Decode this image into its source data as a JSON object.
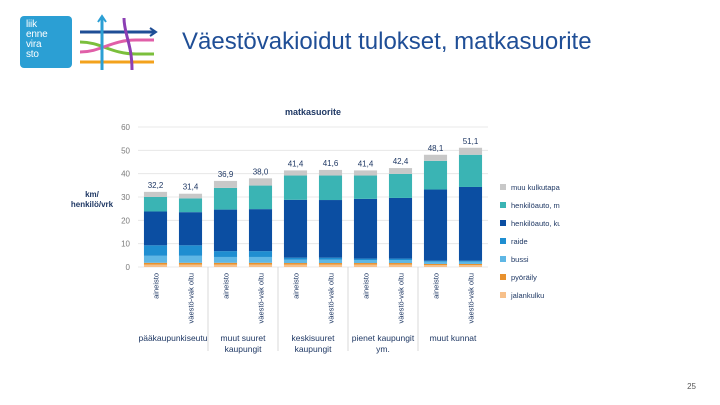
{
  "logo": {
    "lines": [
      "liik",
      "enne",
      "vira",
      "sto"
    ]
  },
  "slide": {
    "title": "Väestövakioidut tulokset, matkasuorite",
    "page_number": "25"
  },
  "chart_data": {
    "type": "bar",
    "stacked": true,
    "title": "matkasuorite",
    "ylabel": "km/ henkilö/vrk",
    "ylabel_lines": [
      "km/",
      "henkilö/vrk"
    ],
    "ylim": [
      0,
      60
    ],
    "yticks": [
      0,
      10,
      20,
      30,
      40,
      50,
      60
    ],
    "grid": true,
    "legend_position": "right",
    "categories": [
      "aineisto",
      "väestö-vak oltu",
      "aineisto",
      "väestö-vak oltu",
      "aineisto",
      "väestö-vak oltu",
      "aineisto",
      "väestö-vak oltu",
      "aineisto",
      "väestö-vak oltu"
    ],
    "groups": [
      {
        "label_lines": [
          "pääkaupunkiseutu"
        ],
        "span": [
          0,
          1
        ]
      },
      {
        "label_lines": [
          "muut suuret",
          "kaupungit"
        ],
        "span": [
          2,
          3
        ]
      },
      {
        "label_lines": [
          "keskisuuret",
          "kaupungit"
        ],
        "span": [
          4,
          5
        ]
      },
      {
        "label_lines": [
          "pienet kaupungit",
          "ym."
        ],
        "span": [
          6,
          7
        ]
      },
      {
        "label_lines": [
          "muut kunnat"
        ],
        "span": [
          8,
          9
        ]
      }
    ],
    "totals": [
      32.2,
      31.4,
      36.9,
      38.0,
      41.4,
      41.6,
      41.4,
      42.4,
      48.1,
      51.1
    ],
    "total_labels": [
      "32,2",
      "31,4",
      "36,9",
      "38,0",
      "41,4",
      "41,6",
      "41,4",
      "42,4",
      "48,1",
      "51,1"
    ],
    "series": [
      {
        "name": "jalankulku",
        "color": "#f7c08a",
        "values": [
          1.0,
          1.0,
          1.0,
          1.0,
          1.0,
          1.0,
          1.0,
          1.0,
          0.8,
          0.8
        ]
      },
      {
        "name": "pyöräily",
        "color": "#e8912d",
        "values": [
          0.8,
          0.8,
          0.8,
          0.8,
          0.7,
          0.7,
          0.7,
          0.7,
          0.5,
          0.5
        ]
      },
      {
        "name": "bussi",
        "color": "#5fb7e5",
        "values": [
          3.0,
          3.0,
          2.5,
          2.5,
          1.5,
          1.5,
          1.3,
          1.3,
          1.0,
          1.0
        ]
      },
      {
        "name": "raide",
        "color": "#1f8ed1",
        "values": [
          4.5,
          4.5,
          2.5,
          2.5,
          0.8,
          0.8,
          0.6,
          0.6,
          0.4,
          0.4
        ]
      },
      {
        "name": "henkilöauto, kuljettaja",
        "color": "#0b4ea2",
        "values": [
          14.5,
          14.2,
          17.8,
          18.0,
          24.8,
          24.7,
          25.6,
          26.0,
          30.5,
          31.6
        ]
      },
      {
        "name": "henkilöauto, matkustaja",
        "color": "#3ab4b4",
        "values": [
          6.2,
          5.9,
          9.3,
          10.1,
          10.4,
          10.5,
          10.0,
          10.3,
          12.3,
          13.8
        ]
      },
      {
        "name": "muu kulkutapa",
        "color": "#c8c8c8",
        "values": [
          2.2,
          2.0,
          3.0,
          3.1,
          2.2,
          2.4,
          2.2,
          2.5,
          2.6,
          3.0
        ]
      }
    ]
  }
}
